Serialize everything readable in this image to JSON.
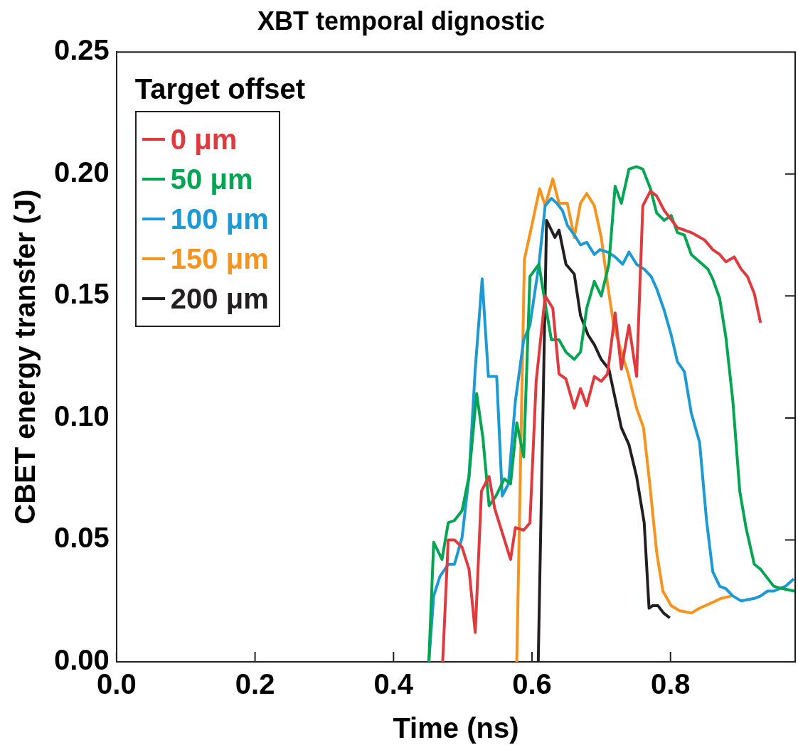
{
  "chart_data": {
    "type": "line",
    "title": "XBT temporal dignostic",
    "xlabel": "Time (ns)",
    "ylabel": "CBET energy transfer (J)",
    "legend_title": "Target offset",
    "legend": "top left",
    "grid": false,
    "marker": "none",
    "line_style": "solid",
    "xlim": [
      0,
      0.98
    ],
    "xticks": [
      {
        "value": 0,
        "label": "0.0"
      },
      {
        "value": 0.2,
        "label": "0.2"
      },
      {
        "value": 0.4,
        "label": "0.4"
      },
      {
        "value": 0.6,
        "label": "0.6"
      },
      {
        "value": 0.8,
        "label": "0.8"
      }
    ],
    "ylim": [
      0,
      0.25
    ],
    "yticks": [
      {
        "value": 0,
        "label": "0.00"
      },
      {
        "value": 0.05,
        "label": "0.05"
      },
      {
        "value": 0.1,
        "label": "0.10"
      },
      {
        "value": 0.15,
        "label": "0.15"
      },
      {
        "value": 0.2,
        "label": "0.20"
      },
      {
        "value": 0.25,
        "label": "0.25"
      }
    ],
    "series": [
      {
        "name": "0 μm",
        "color": "#e03a3e",
        "x": [
          0.471,
          0.479,
          0.488,
          0.499,
          0.509,
          0.518,
          0.527,
          0.538,
          0.546,
          0.569,
          0.576,
          0.588,
          0.597,
          0.606,
          0.619,
          0.63,
          0.639,
          0.649,
          0.661,
          0.67,
          0.679,
          0.69,
          0.7,
          0.709,
          0.72,
          0.729,
          0.74,
          0.751,
          0.76,
          0.771,
          0.78,
          0.791,
          0.81,
          0.83,
          0.849,
          0.861,
          0.871,
          0.88,
          0.892,
          0.902,
          0.911,
          0.921,
          0.93
        ],
        "values": [
          0,
          0.05,
          0.05,
          0.047,
          0.038,
          0.012,
          0.07,
          0.076,
          0.063,
          0.042,
          0.055,
          0.054,
          0.057,
          0.115,
          0.15,
          0.145,
          0.118,
          0.116,
          0.104,
          0.112,
          0.105,
          0.117,
          0.115,
          0.118,
          0.143,
          0.12,
          0.138,
          0.117,
          0.187,
          0.193,
          0.191,
          0.185,
          0.178,
          0.176,
          0.173,
          0.169,
          0.167,
          0.164,
          0.166,
          0.161,
          0.158,
          0.151,
          0.139
        ]
      },
      {
        "name": "50 μm",
        "color": "#00a651",
        "x": [
          0.451,
          0.458,
          0.47,
          0.479,
          0.488,
          0.499,
          0.509,
          0.52,
          0.529,
          0.538,
          0.548,
          0.56,
          0.569,
          0.578,
          0.588,
          0.597,
          0.61,
          0.619,
          0.628,
          0.639,
          0.649,
          0.661,
          0.67,
          0.679,
          0.69,
          0.7,
          0.711,
          0.72,
          0.729,
          0.74,
          0.751,
          0.76,
          0.771,
          0.78,
          0.791,
          0.801,
          0.81,
          0.82,
          0.83,
          0.842,
          0.854,
          0.861,
          0.871,
          0.88,
          0.89,
          0.9,
          0.909,
          0.921,
          0.93,
          0.949,
          0.962,
          0.979
        ],
        "values": [
          0,
          0.049,
          0.042,
          0.057,
          0.058,
          0.062,
          0.076,
          0.11,
          0.092,
          0.064,
          0.068,
          0.075,
          0.073,
          0.098,
          0.084,
          0.158,
          0.163,
          0.147,
          0.132,
          0.132,
          0.127,
          0.124,
          0.127,
          0.145,
          0.156,
          0.15,
          0.163,
          0.195,
          0.188,
          0.202,
          0.203,
          0.202,
          0.194,
          0.184,
          0.181,
          0.183,
          0.176,
          0.175,
          0.167,
          0.164,
          0.161,
          0.157,
          0.149,
          0.133,
          0.107,
          0.07,
          0.055,
          0.04,
          0.038,
          0.031,
          0.03,
          0.029
        ]
      },
      {
        "name": "100 μm",
        "color": "#1b9ad6",
        "x": [
          0.451,
          0.458,
          0.467,
          0.479,
          0.488,
          0.499,
          0.509,
          0.518,
          0.528,
          0.537,
          0.543,
          0.549,
          0.557,
          0.566,
          0.576,
          0.588,
          0.597,
          0.61,
          0.619,
          0.628,
          0.636,
          0.644,
          0.651,
          0.661,
          0.67,
          0.679,
          0.69,
          0.698,
          0.709,
          0.72,
          0.731,
          0.74,
          0.751,
          0.762,
          0.772,
          0.78,
          0.791,
          0.801,
          0.81,
          0.82,
          0.83,
          0.842,
          0.852,
          0.861,
          0.871,
          0.88,
          0.89,
          0.902,
          0.921,
          0.93,
          0.94,
          0.949,
          0.966,
          0.978
        ],
        "values": [
          0,
          0.027,
          0.035,
          0.04,
          0.04,
          0.051,
          0.076,
          0.12,
          0.157,
          0.117,
          0.117,
          0.117,
          0.068,
          0.073,
          0.107,
          0.132,
          0.138,
          0.163,
          0.187,
          0.19,
          0.188,
          0.185,
          0.179,
          0.175,
          0.171,
          0.172,
          0.167,
          0.169,
          0.168,
          0.166,
          0.163,
          0.168,
          0.163,
          0.161,
          0.158,
          0.153,
          0.144,
          0.134,
          0.123,
          0.119,
          0.102,
          0.09,
          0.058,
          0.037,
          0.031,
          0.03,
          0.027,
          0.025,
          0.026,
          0.027,
          0.029,
          0.029,
          0.031,
          0.034
        ]
      },
      {
        "name": "150 μm",
        "color": "#f7941d",
        "x": [
          0.578,
          0.589,
          0.599,
          0.611,
          0.619,
          0.63,
          0.639,
          0.651,
          0.661,
          0.67,
          0.679,
          0.69,
          0.7,
          0.709,
          0.718,
          0.728,
          0.739,
          0.751,
          0.761,
          0.77,
          0.78,
          0.789,
          0.801,
          0.813,
          0.83,
          0.842,
          0.858,
          0.873,
          0.888
        ],
        "values": [
          0,
          0.165,
          0.178,
          0.194,
          0.187,
          0.198,
          0.188,
          0.188,
          0.174,
          0.188,
          0.192,
          0.187,
          0.174,
          0.155,
          0.138,
          0.128,
          0.118,
          0.104,
          0.096,
          0.073,
          0.045,
          0.029,
          0.023,
          0.021,
          0.02,
          0.022,
          0.024,
          0.026,
          0.027
        ]
      },
      {
        "name": "200 μm",
        "color": "#231f20",
        "x": [
          0.609,
          0.621,
          0.633,
          0.639,
          0.649,
          0.661,
          0.67,
          0.681,
          0.69,
          0.7,
          0.711,
          0.72,
          0.729,
          0.74,
          0.751,
          0.762,
          0.769,
          0.774,
          0.782,
          0.79,
          0.799
        ],
        "values": [
          0,
          0.181,
          0.174,
          0.177,
          0.163,
          0.159,
          0.142,
          0.134,
          0.13,
          0.124,
          0.12,
          0.108,
          0.096,
          0.089,
          0.076,
          0.057,
          0.022,
          0.023,
          0.023,
          0.02,
          0.018
        ]
      }
    ]
  }
}
